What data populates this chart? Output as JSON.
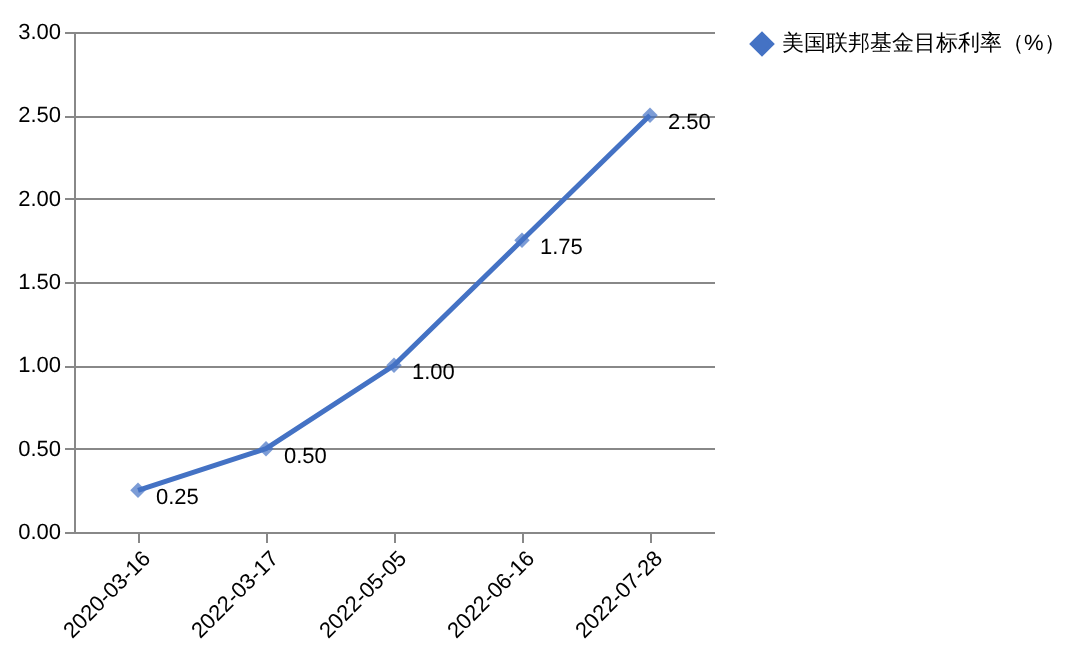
{
  "chart_data": {
    "type": "line",
    "categories": [
      "2020-03-16",
      "2022-03-17",
      "2022-05-05",
      "2022-06-16",
      "2022-07-28"
    ],
    "series": [
      {
        "name": "美国联邦基金目标利率（%）",
        "color": "#4472c4",
        "values": [
          0.25,
          0.5,
          1.0,
          1.75,
          2.5
        ],
        "value_labels": [
          "0.25",
          "0.50",
          "1.00",
          "1.75",
          "2.50"
        ]
      }
    ],
    "ylim": [
      0,
      3
    ],
    "yticks": [
      {
        "value": 0,
        "label": "0.00"
      },
      {
        "value": 0.5,
        "label": "0.50"
      },
      {
        "value": 1,
        "label": "1.00"
      },
      {
        "value": 1.5,
        "label": "1.50"
      },
      {
        "value": 2,
        "label": "2.00"
      },
      {
        "value": 2.5,
        "label": "2.50"
      },
      {
        "value": 3,
        "label": "3.00"
      }
    ],
    "grid": "y",
    "legend": "right",
    "marker": "diamond",
    "line_style": "solid"
  }
}
